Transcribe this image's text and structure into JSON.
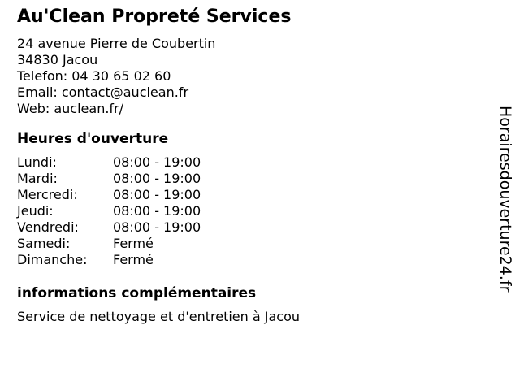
{
  "business": {
    "name": "Au'Clean Propreté Services",
    "address_line1": "24 avenue Pierre de Coubertin",
    "address_line2": "34830 Jacou",
    "phone_line": "Telefon: 04 30 65 02 60",
    "email_line": "Email: contact@auclean.fr",
    "web_line": "Web: auclean.fr/"
  },
  "hours": {
    "heading": "Heures d'ouverture",
    "days": [
      {
        "label": "Lundi:",
        "value": "08:00 - 19:00"
      },
      {
        "label": "Mardi:",
        "value": "08:00 - 19:00"
      },
      {
        "label": "Mercredi:",
        "value": "08:00 - 19:00"
      },
      {
        "label": "Jeudi:",
        "value": "08:00 - 19:00"
      },
      {
        "label": "Vendredi:",
        "value": "08:00 - 19:00"
      },
      {
        "label": "Samedi:",
        "value": "Fermé"
      },
      {
        "label": "Dimanche:",
        "value": "Fermé"
      }
    ]
  },
  "info": {
    "heading": "informations complémentaires",
    "text": "Service de nettoyage et d'entretien à Jacou"
  },
  "watermark": "Horairesdouverture24.fr",
  "colors": {
    "text": "#000000",
    "background": "#ffffff"
  }
}
